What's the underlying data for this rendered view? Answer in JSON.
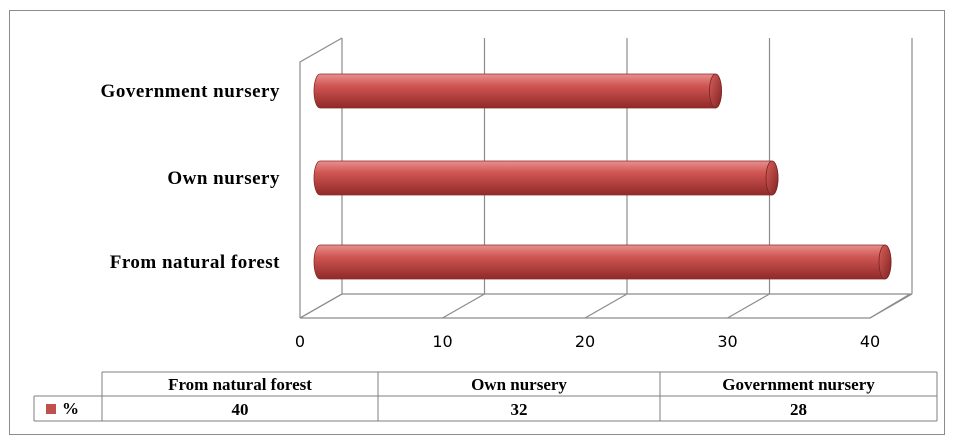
{
  "chart_data": {
    "type": "bar",
    "orientation": "horizontal",
    "style": "3d-cylinder",
    "categories": [
      "From natural forest",
      "Own nursery",
      "Government nursery"
    ],
    "series": [
      {
        "name": "%",
        "values": [
          40,
          32,
          28
        ],
        "color": "#c0504d"
      }
    ],
    "xlim": [
      0,
      40
    ],
    "x_ticks": [
      "0",
      "10",
      "20",
      "30",
      "40"
    ],
    "grid": true,
    "legend": "data-table-bottom",
    "data_table": {
      "headers": [
        "From natural forest",
        "Own nursery",
        "Government nursery"
      ],
      "legend_label": "%",
      "values": [
        "40",
        "32",
        "28"
      ]
    }
  }
}
